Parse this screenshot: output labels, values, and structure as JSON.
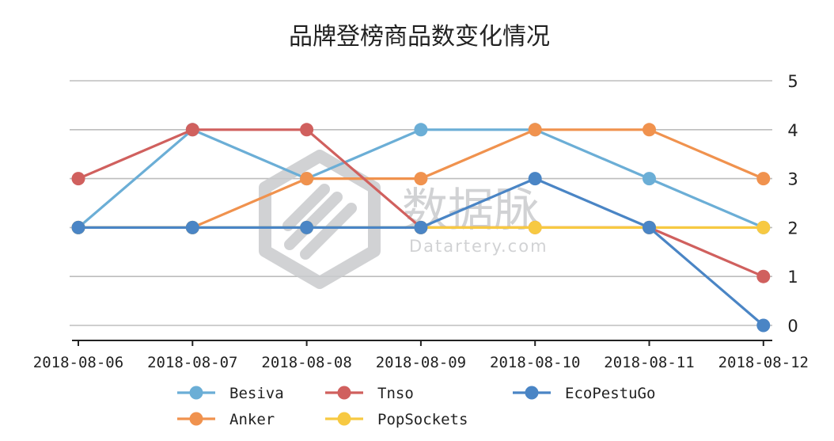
{
  "chart_data": {
    "type": "line",
    "title": "品牌登榜商品数变化情况",
    "categories": [
      "2018-08-06",
      "2018-08-07",
      "2018-08-08",
      "2018-08-09",
      "2018-08-10",
      "2018-08-11",
      "2018-08-12"
    ],
    "ylim": [
      0,
      5
    ],
    "yticks": [
      0,
      1,
      2,
      3,
      4,
      5
    ],
    "y_axis_side": "right",
    "grid": true,
    "legend_position": "bottom",
    "series": [
      {
        "name": "Besiva",
        "color": "#6baed6",
        "values": [
          2,
          4,
          3,
          4,
          4,
          3,
          2
        ]
      },
      {
        "name": "Anker",
        "color": "#f0924e",
        "values": [
          2,
          2,
          3,
          3,
          4,
          4,
          3
        ]
      },
      {
        "name": "Tnso",
        "color": "#d0605e",
        "values": [
          3,
          4,
          4,
          2,
          2,
          2,
          1
        ]
      },
      {
        "name": "PopSockets",
        "color": "#f7c942",
        "values": [
          2,
          2,
          2,
          2,
          2,
          2,
          2
        ]
      },
      {
        "name": "EcoPestuGo",
        "color": "#4a85c5",
        "values": [
          2,
          2,
          2,
          2,
          3,
          2,
          0
        ]
      }
    ]
  },
  "watermark": {
    "text_cn": "数据脉",
    "text_en": "Datartery.com"
  }
}
